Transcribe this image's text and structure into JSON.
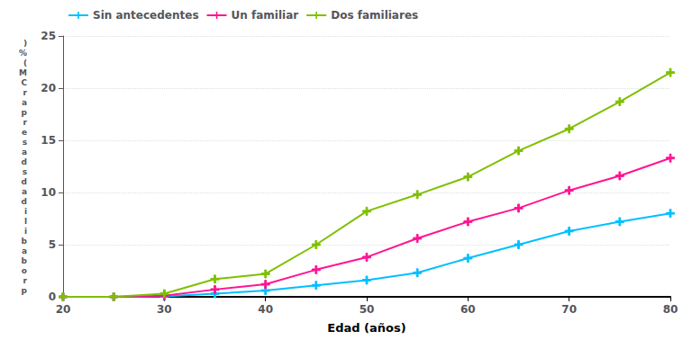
{
  "chart_data": {
    "type": "line",
    "xlabel": "Edad (años)",
    "ylabel": ")%(MCrapresadsdadilibaborp",
    "x": [
      20,
      25,
      30,
      35,
      40,
      45,
      50,
      55,
      60,
      65,
      70,
      75,
      80
    ],
    "series": [
      {
        "name": "Sin antecedentes",
        "color": "#00BFFF",
        "marker": "plus",
        "values": [
          0.0,
          0.0,
          0.05,
          0.3,
          0.6,
          1.1,
          1.6,
          2.3,
          3.7,
          5.0,
          6.3,
          7.2,
          8.0
        ]
      },
      {
        "name": "Un familiar",
        "color": "#FF1493",
        "marker": "plus",
        "values": [
          0.0,
          0.0,
          0.1,
          0.7,
          1.2,
          2.6,
          3.8,
          5.6,
          7.2,
          8.5,
          10.2,
          11.6,
          13.3
        ]
      },
      {
        "name": "Dos familiares",
        "color": "#7FBF00",
        "marker": "plus",
        "values": [
          0.0,
          0.0,
          0.3,
          1.7,
          2.2,
          5.0,
          8.2,
          9.8,
          11.5,
          14.0,
          16.1,
          18.7,
          21.5
        ]
      }
    ],
    "xlim": [
      20,
      80
    ],
    "xticks": [
      20,
      30,
      40,
      50,
      60,
      70,
      80
    ],
    "ylim": [
      0,
      25
    ],
    "yticks": [
      0,
      5,
      10,
      15,
      20,
      25
    ],
    "grid": true,
    "legend": "upper left"
  }
}
